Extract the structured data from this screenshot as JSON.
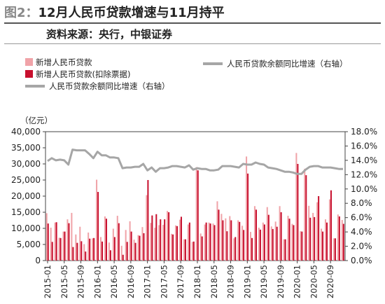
{
  "figure": {
    "label": "图2：",
    "title": "12月人民币贷款增速与11月持平",
    "source": "资料来源：央行，中银证券"
  },
  "legend": {
    "bar_light": "新增人民币贷款",
    "bar_dark": "新增人民币贷款(扣除票据)",
    "line_left": "人民币贷款余额同比增速（右轴）",
    "line_right": "人民币贷款余额同比增速（右轴）"
  },
  "colors": {
    "bar_light": "#f0a3a8",
    "bar_dark": "#c8102e",
    "line": "#a6a6a6"
  },
  "chart_data": {
    "type": "bar",
    "yunit": "（亿元）",
    "ylim": [
      0,
      40000
    ],
    "yticks": [
      "0",
      "5,000",
      "10,000",
      "15,000",
      "20,000",
      "25,000",
      "30,000",
      "35,000",
      "40,000"
    ],
    "y2lim": [
      0,
      18
    ],
    "y2ticks": [
      "0.0%",
      "2.0%",
      "4.0%",
      "6.0%",
      "8.0%",
      "10.0%",
      "12.0%",
      "14.0%",
      "16.0%",
      "18.0%"
    ],
    "xtick_labels": [
      "2015-01",
      "2015-05",
      "2015-09",
      "2016-01",
      "2016-05",
      "2016-09",
      "2017-01",
      "2017-05",
      "2017-09",
      "2018-01",
      "2018-05",
      "2018-09",
      "2019-01",
      "2019-05",
      "2019-09",
      "2020-01",
      "2020-05",
      "2020-09"
    ],
    "categories": [
      "2015-01",
      "2015-02",
      "2015-03",
      "2015-04",
      "2015-05",
      "2015-06",
      "2015-07",
      "2015-08",
      "2015-09",
      "2015-10",
      "2015-11",
      "2015-12",
      "2016-01",
      "2016-02",
      "2016-03",
      "2016-04",
      "2016-05",
      "2016-06",
      "2016-07",
      "2016-08",
      "2016-09",
      "2016-10",
      "2016-11",
      "2016-12",
      "2017-01",
      "2017-02",
      "2017-03",
      "2017-04",
      "2017-05",
      "2017-06",
      "2017-07",
      "2017-08",
      "2017-09",
      "2017-10",
      "2017-11",
      "2017-12",
      "2018-01",
      "2018-02",
      "2018-03",
      "2018-04",
      "2018-05",
      "2018-06",
      "2018-07",
      "2018-08",
      "2018-09",
      "2018-10",
      "2018-11",
      "2018-12",
      "2019-01",
      "2019-02",
      "2019-03",
      "2019-04",
      "2019-05",
      "2019-06",
      "2019-07",
      "2019-08",
      "2019-09",
      "2019-10",
      "2019-11",
      "2019-12",
      "2020-01",
      "2020-02",
      "2020-03",
      "2020-04",
      "2020-05",
      "2020-06",
      "2020-07",
      "2020-08",
      "2020-09",
      "2020-10",
      "2020-11",
      "2020-12"
    ],
    "series": [
      {
        "name": "新增人民币贷款",
        "type": "bar",
        "axis": "left",
        "values": [
          14700,
          10200,
          11800,
          7100,
          9000,
          12800,
          14800,
          8100,
          10500,
          5100,
          8700,
          6900,
          25100,
          7300,
          13700,
          5600,
          9900,
          13900,
          4600,
          9500,
          12200,
          6500,
          7900,
          10400,
          20300,
          11700,
          10200,
          11000,
          11100,
          15400,
          8300,
          10900,
          12700,
          6600,
          11200,
          5800,
          29000,
          8400,
          11200,
          11800,
          11500,
          18400,
          14500,
          13100,
          13800,
          6900,
          12500,
          10800,
          32300,
          8900,
          16900,
          10200,
          11800,
          16600,
          10600,
          12100,
          16900,
          6600,
          13900,
          11400,
          33400,
          9100,
          28500,
          17000,
          14800,
          18100,
          9900,
          12800,
          19000,
          6900,
          14300,
          12600
        ]
      },
      {
        "name": "新增人民币贷款(扣除票据)",
        "type": "bar",
        "axis": "left",
        "values": [
          11500,
          5800,
          11900,
          7000,
          9000,
          11600,
          4200,
          5500,
          6000,
          2800,
          6800,
          7000,
          21300,
          5900,
          13000,
          3200,
          7300,
          11600,
          1800,
          5800,
          9000,
          5500,
          7700,
          8500,
          25000,
          14000,
          14400,
          12800,
          12800,
          15000,
          8100,
          10700,
          13600,
          6600,
          11800,
          5900,
          28000,
          7500,
          11800,
          11500,
          11000,
          15800,
          12500,
          9100,
          12500,
          7300,
          12000,
          9500,
          27000,
          7000,
          15800,
          9600,
          11200,
          14200,
          9800,
          10500,
          15000,
          6600,
          13000,
          11000,
          30000,
          9000,
          26500,
          13300,
          13500,
          20000,
          9000,
          11800,
          21800,
          6900,
          13700,
          11400
        ]
      },
      {
        "name": "人民币贷款余额同比增速（右轴）",
        "type": "line",
        "axis": "right",
        "values": [
          13.9,
          14.3,
          14.0,
          14.1,
          14.0,
          13.4,
          15.5,
          15.4,
          15.4,
          15.4,
          14.9,
          14.3,
          15.2,
          14.7,
          14.7,
          14.4,
          14.4,
          14.3,
          12.9,
          13.0,
          13.0,
          13.1,
          13.1,
          13.5,
          12.6,
          13.0,
          12.4,
          12.9,
          12.9,
          13.0,
          13.2,
          13.2,
          13.1,
          13.0,
          13.3,
          12.7,
          12.9,
          12.8,
          12.8,
          12.6,
          12.6,
          12.7,
          13.2,
          13.2,
          13.2,
          13.1,
          13.0,
          13.5,
          13.4,
          13.4,
          13.7,
          13.5,
          13.4,
          13.0,
          12.9,
          12.8,
          12.6,
          12.4,
          12.4,
          12.3,
          12.1,
          12.1,
          12.7,
          13.1,
          13.2,
          13.2,
          13.0,
          13.0,
          13.0,
          12.9,
          12.8,
          12.8
        ]
      }
    ]
  }
}
